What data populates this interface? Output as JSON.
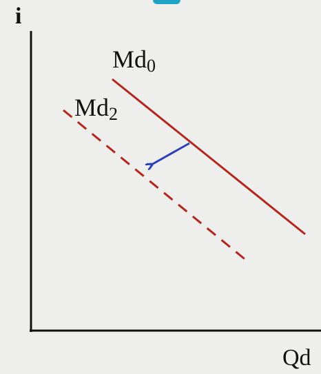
{
  "axes": {
    "y_label": "i",
    "x_label": "Qd"
  },
  "curves": [
    {
      "label": "Md",
      "subscript": "0",
      "style": "solid"
    },
    {
      "label": "Md",
      "subscript": "2",
      "style": "dashed"
    }
  ]
}
